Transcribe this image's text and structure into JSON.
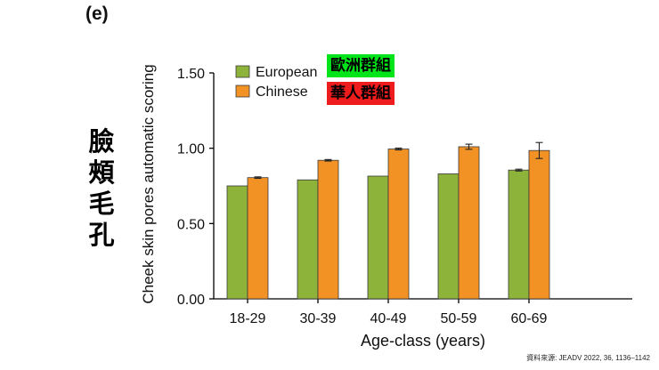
{
  "panel_label": "(e)",
  "side_title": [
    "臉",
    "頰",
    "毛",
    "孔"
  ],
  "badges": {
    "european": "歐洲群組",
    "chinese": "華人群組"
  },
  "source_note": "資料來源: JEADV 2022, 36, 1136–1142",
  "colors": {
    "european": "#8db33a",
    "chinese": "#f39224",
    "axis": "#000000"
  },
  "chart_data": {
    "type": "bar",
    "title": "",
    "xlabel": "Age-class (years)",
    "ylabel": "Cheek skin pores automatic scoring",
    "categories": [
      "18-29",
      "30-39",
      "40-49",
      "50-59",
      "60-69"
    ],
    "series": [
      {
        "name": "European",
        "values": [
          0.75,
          0.79,
          0.815,
          0.83,
          0.855
        ],
        "errors": [
          0.0,
          0.0,
          0.0,
          0.0,
          0.006
        ]
      },
      {
        "name": "Chinese",
        "values": [
          0.805,
          0.92,
          0.995,
          1.01,
          0.985
        ],
        "errors": [
          0.005,
          0.005,
          0.006,
          0.017,
          0.053
        ]
      }
    ],
    "ylim": [
      0,
      1.5
    ],
    "yticks": [
      "0.00",
      "0.50",
      "1.00",
      "1.50"
    ],
    "legend": "top-left"
  }
}
